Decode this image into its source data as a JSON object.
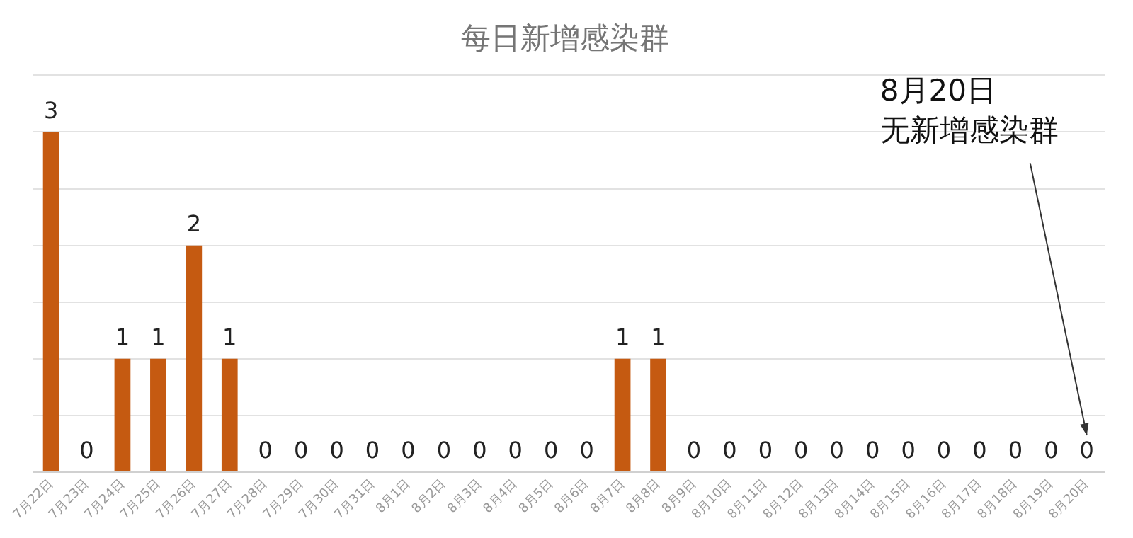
{
  "chart_data": {
    "type": "bar",
    "title": "每日新增感染群",
    "categories": [
      "7月22日",
      "7月23日",
      "7月24日",
      "7月25日",
      "7月26日",
      "7月27日",
      "7月28日",
      "7月29日",
      "7月30日",
      "7月31日",
      "8月1日",
      "8月2日",
      "8月3日",
      "8月4日",
      "8月5日",
      "8月6日",
      "8月7日",
      "8月8日",
      "8月9日",
      "8月10日",
      "8月11日",
      "8月12日",
      "8月13日",
      "8月14日",
      "8月15日",
      "8月16日",
      "8月17日",
      "8月18日",
      "8月19日",
      "8月20日"
    ],
    "values": [
      3,
      0,
      1,
      1,
      2,
      1,
      0,
      0,
      0,
      0,
      0,
      0,
      0,
      0,
      0,
      0,
      1,
      1,
      0,
      0,
      0,
      0,
      0,
      0,
      0,
      0,
      0,
      0,
      0,
      0
    ],
    "color": "#c55a11",
    "ylim": [
      0,
      3.5
    ],
    "yticks": [
      {
        "value": 0,
        "label": null
      },
      {
        "value": 0.5,
        "label": null
      },
      {
        "value": 1,
        "label": null
      },
      {
        "value": 1.5,
        "label": null
      },
      {
        "value": 2,
        "label": null
      },
      {
        "value": 2.5,
        "label": null
      },
      {
        "value": 3,
        "label": null
      },
      {
        "value": 3.5,
        "label": null
      }
    ],
    "tick_labels": "x",
    "grid": "y",
    "legend": false,
    "data_labels": true,
    "annotations": [
      "8月20日",
      "无新增感染群"
    ]
  }
}
